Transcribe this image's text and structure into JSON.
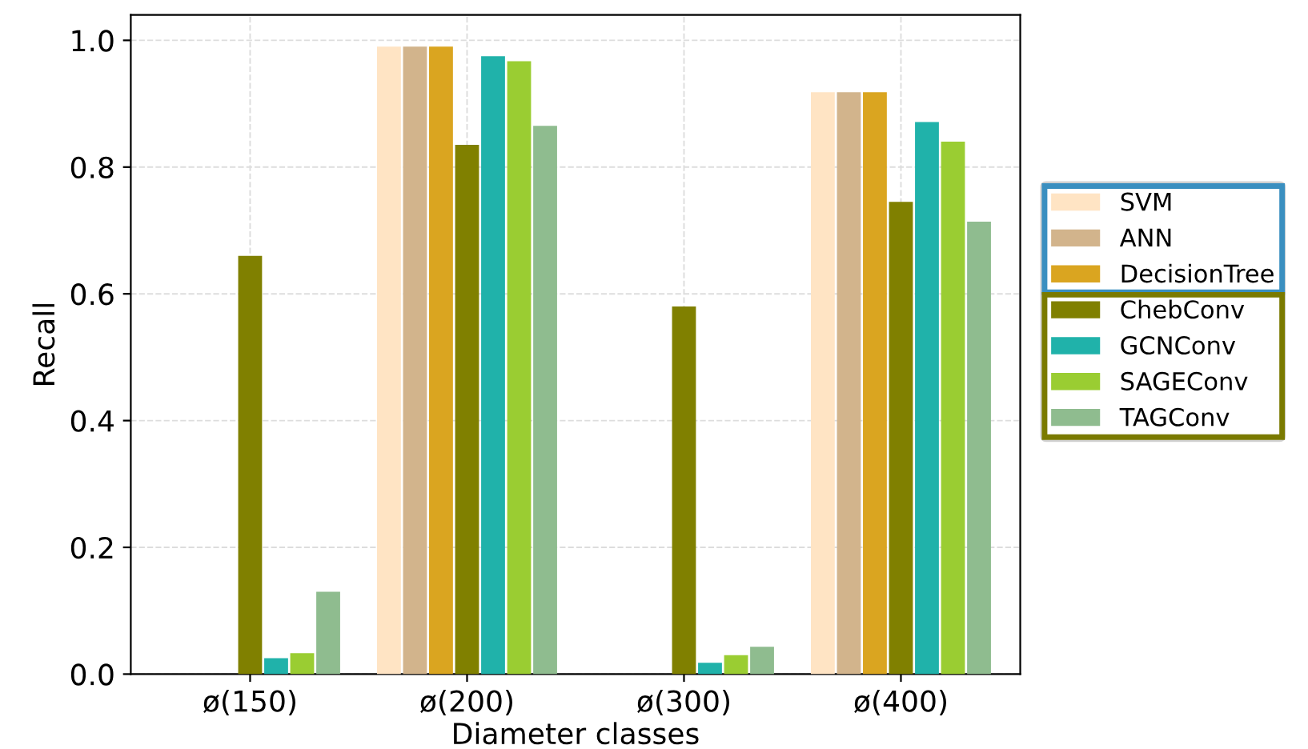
{
  "chart_data": {
    "type": "bar",
    "xlabel": "Diameter classes",
    "ylabel": "Recall",
    "categories": [
      "ø(150)",
      "ø(200)",
      "ø(300)",
      "ø(400)"
    ],
    "series": [
      {
        "name": "SVM",
        "color": "#ffe4c4",
        "values": [
          0.0,
          0.99,
          0.0,
          0.918
        ]
      },
      {
        "name": "ANN",
        "color": "#d2b48c",
        "values": [
          0.0,
          0.99,
          0.0,
          0.918
        ]
      },
      {
        "name": "DecisionTree",
        "color": "#daa520",
        "values": [
          0.0,
          0.99,
          0.0,
          0.918
        ]
      },
      {
        "name": "ChebConv",
        "color": "#808000",
        "values": [
          0.66,
          0.835,
          0.58,
          0.745
        ]
      },
      {
        "name": "GCNConv",
        "color": "#20b2aa",
        "values": [
          0.025,
          0.975,
          0.018,
          0.871
        ]
      },
      {
        "name": "SAGEConv",
        "color": "#9acd32",
        "values": [
          0.033,
          0.967,
          0.03,
          0.84
        ]
      },
      {
        "name": "TAGConv",
        "color": "#8fbc8f",
        "values": [
          0.13,
          0.865,
          0.043,
          0.714
        ]
      }
    ],
    "ylim": [
      0.0,
      1.04
    ],
    "yticks": [
      {
        "value": 0,
        "label": "0.0"
      },
      0.2,
      0.4,
      0.6,
      0.8,
      {
        "value": 1,
        "label": "1.0"
      }
    ],
    "grid": true,
    "legend": "right"
  }
}
